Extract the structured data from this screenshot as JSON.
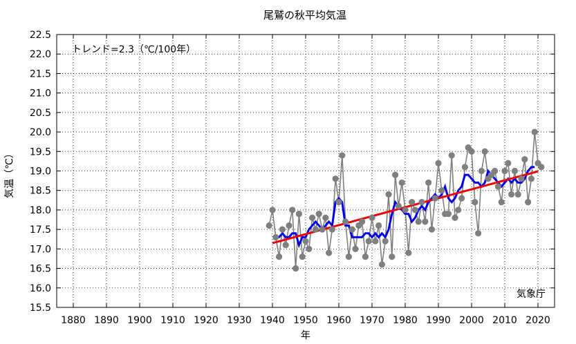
{
  "chart_data": {
    "type": "line",
    "title": "尾鷲の秋平均気温",
    "xlabel": "年",
    "ylabel": "気温（℃）",
    "xlim": [
      1875,
      2025
    ],
    "ylim": [
      15.5,
      22.5
    ],
    "x_ticks": [
      1880,
      1890,
      1900,
      1910,
      1920,
      1930,
      1940,
      1950,
      1960,
      1970,
      1980,
      1990,
      2000,
      2010,
      2020
    ],
    "y_ticks": [
      15.5,
      16.0,
      16.5,
      17.0,
      17.5,
      18.0,
      18.5,
      19.0,
      19.5,
      20.0,
      20.5,
      21.0,
      21.5,
      22.0,
      22.5
    ],
    "grid": true,
    "annotations": {
      "trend_text": "トレンド=2.3（℃/100年）",
      "credit": "気象庁"
    },
    "colors": {
      "annual": "#7f7f7f",
      "moving_average": "#0000ee",
      "trend": "#ee0000",
      "grid": "#000000"
    },
    "series": [
      {
        "kind": "annual",
        "x": [
          1939,
          1940,
          1941,
          1942,
          1943,
          1944,
          1945,
          1946,
          1947,
          1948,
          1949,
          1950,
          1951,
          1952,
          1953,
          1954,
          1955,
          1956,
          1957,
          1958,
          1959,
          1960,
          1961,
          1962,
          1963,
          1964,
          1965,
          1966,
          1967,
          1968,
          1969,
          1970,
          1971,
          1972,
          1973,
          1974,
          1975,
          1976,
          1977,
          1978,
          1979,
          1980,
          1981,
          1982,
          1983,
          1984,
          1985,
          1986,
          1987,
          1988,
          1989,
          1990,
          1991,
          1992,
          1993,
          1994,
          1995,
          1996,
          1997,
          1998,
          1999,
          2000,
          2001,
          2002,
          2003,
          2004,
          2005,
          2006,
          2007,
          2008,
          2009,
          2010,
          2011,
          2012,
          2013,
          2014,
          2015,
          2016,
          2017,
          2018,
          2019,
          2020,
          2021
        ],
        "values": [
          17.6,
          18.0,
          17.3,
          16.8,
          17.5,
          17.1,
          17.6,
          18.0,
          16.5,
          17.9,
          16.8,
          17.2,
          17.0,
          17.8,
          17.5,
          17.9,
          17.5,
          17.8,
          16.9,
          17.5,
          18.8,
          18.2,
          19.4,
          17.7,
          16.8,
          17.5,
          17.0,
          17.6,
          17.7,
          16.8,
          17.2,
          17.8,
          17.2,
          17.6,
          16.6,
          17.2,
          18.4,
          16.8,
          18.9,
          18.1,
          18.7,
          18.0,
          16.9,
          18.2,
          18.0,
          17.7,
          18.2,
          17.7,
          18.7,
          17.5,
          18.3,
          19.2,
          18.5,
          17.9,
          17.9,
          19.4,
          17.8,
          18.0,
          18.3,
          19.1,
          19.6,
          19.5,
          18.2,
          17.4,
          19.0,
          19.5,
          18.8,
          18.9,
          19.0,
          18.6,
          18.2,
          19.0,
          19.2,
          18.4,
          19.0,
          18.4,
          18.8,
          19.3,
          18.2,
          18.8,
          20.0,
          19.2,
          19.1
        ]
      },
      {
        "kind": "moving_average",
        "x": [
          1941,
          1942,
          1943,
          1944,
          1945,
          1946,
          1947,
          1948,
          1949,
          1950,
          1951,
          1952,
          1953,
          1954,
          1955,
          1956,
          1957,
          1958,
          1959,
          1960,
          1961,
          1962,
          1963,
          1964,
          1965,
          1966,
          1967,
          1968,
          1969,
          1970,
          1971,
          1972,
          1973,
          1974,
          1975,
          1976,
          1977,
          1978,
          1979,
          1980,
          1981,
          1982,
          1983,
          1984,
          1985,
          1986,
          1987,
          1988,
          1989,
          1990,
          1991,
          1992,
          1993,
          1994,
          1995,
          1996,
          1997,
          1998,
          1999,
          2000,
          2001,
          2002,
          2003,
          2004,
          2005,
          2006,
          2007,
          2008,
          2009,
          2010,
          2011,
          2012,
          2013,
          2014,
          2015,
          2016,
          2017,
          2018,
          2019
        ],
        "values": [
          17.3,
          17.3,
          17.4,
          17.3,
          17.3,
          17.4,
          17.4,
          17.1,
          17.3,
          17.3,
          17.5,
          17.6,
          17.7,
          17.6,
          17.5,
          17.6,
          17.7,
          17.6,
          18.2,
          18.3,
          18.2,
          17.6,
          17.6,
          17.3,
          17.3,
          17.3,
          17.3,
          17.4,
          17.4,
          17.3,
          17.4,
          17.3,
          17.4,
          17.3,
          17.5,
          17.9,
          18.2,
          18.1,
          18.0,
          17.9,
          17.9,
          17.7,
          17.8,
          18.0,
          18.1,
          18.0,
          18.2,
          18.3,
          18.4,
          18.3,
          18.4,
          18.6,
          18.3,
          18.2,
          18.3,
          18.5,
          18.6,
          18.9,
          18.9,
          18.8,
          18.7,
          18.7,
          18.6,
          18.7,
          19.0,
          18.9,
          18.8,
          18.7,
          18.6,
          18.7,
          18.8,
          18.7,
          18.8,
          18.7,
          18.7,
          18.8,
          19.0,
          19.1,
          19.1
        ]
      },
      {
        "kind": "trend",
        "x": [
          1940,
          2020
        ],
        "values": [
          17.15,
          18.99
        ]
      }
    ]
  }
}
